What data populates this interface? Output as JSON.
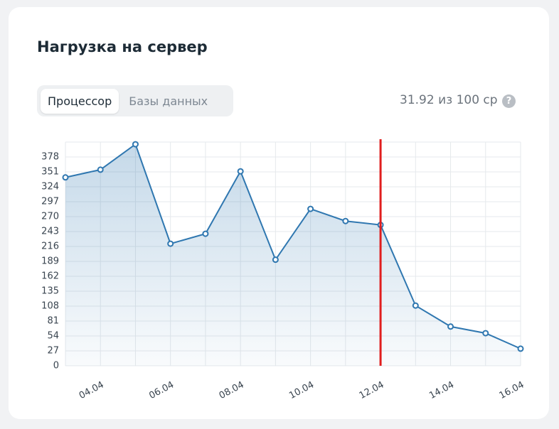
{
  "title": "Нагрузка на сервер",
  "tabs": [
    {
      "label": "Процессор",
      "active": true
    },
    {
      "label": "Базы данных",
      "active": false
    }
  ],
  "usage": "31.92 из 100 ср",
  "help": "?",
  "chart_data": {
    "type": "area",
    "categories": [
      null,
      "04.04",
      null,
      "06.04",
      null,
      "08.04",
      null,
      "10.04",
      null,
      "12.04",
      null,
      "14.04",
      null,
      "16.04"
    ],
    "series": [
      {
        "color": "#2f77b0",
        "values": [
          341,
          355,
          401,
          221,
          239,
          352,
          192,
          284,
          262,
          255,
          109,
          71,
          59,
          31
        ]
      }
    ],
    "ylim": [
      0,
      405
    ],
    "yticks": [
      0,
      27,
      54,
      81,
      108,
      135,
      162,
      189,
      216,
      243,
      270,
      297,
      324,
      351,
      378
    ],
    "grid": true,
    "highlight": {
      "x": "12.04",
      "color": "#e01e1e"
    }
  }
}
